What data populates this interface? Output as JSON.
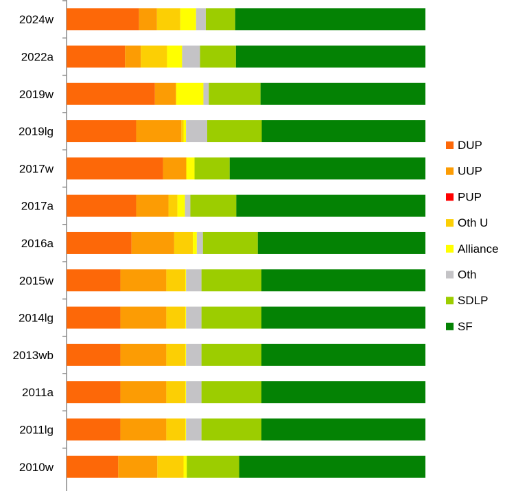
{
  "chart_data": {
    "type": "bar",
    "orientation": "horizontal",
    "stacked": "percent",
    "categories": [
      "2024w",
      "2022a",
      "2019w",
      "2019lg",
      "2017w",
      "2017a",
      "2016a",
      "2015w",
      "2014lg",
      "2013wb",
      "2011a",
      "2011lg",
      "2010w"
    ],
    "series": [
      {
        "name": "DUP",
        "color": "#fd6808",
        "values": [
          20.2,
          16.3,
          24.6,
          19.4,
          26.9,
          19.4,
          18.1,
          15.0,
          15.0,
          15.0,
          15.0,
          15.0,
          14.4
        ]
      },
      {
        "name": "UUP",
        "color": "#fc9c04",
        "values": [
          5.0,
          4.4,
          5.9,
          12.6,
          6.5,
          9.0,
          11.9,
          12.8,
          12.8,
          12.8,
          12.8,
          12.8,
          10.9
        ]
      },
      {
        "name": "PUP",
        "color": "#ff0000",
        "values": [
          0,
          0,
          0,
          0,
          0,
          0,
          0,
          0,
          0,
          0,
          0,
          0,
          0
        ]
      },
      {
        "name": "Oth U",
        "color": "#fccf04",
        "values": [
          6.5,
          7.3,
          0,
          0.6,
          0,
          2.5,
          5.2,
          5.3,
          5.3,
          5.3,
          5.3,
          5.3,
          7.3
        ]
      },
      {
        "name": "Alliance",
        "color": "#ffff00",
        "values": [
          4.4,
          4.2,
          7.6,
          0.7,
          2.3,
          2.1,
          1.1,
          0.2,
          0.2,
          0.2,
          0.2,
          0.2,
          0.9
        ]
      },
      {
        "name": "Oth",
        "color": "#c4c3c6",
        "values": [
          2.7,
          5.0,
          1.5,
          5.9,
          0,
          1.5,
          1.7,
          4.3,
          4.3,
          4.3,
          4.3,
          4.3,
          0
        ]
      },
      {
        "name": "SDLP",
        "color": "#9ccd00",
        "values": [
          8.2,
          10.0,
          14.4,
          15.2,
          9.8,
          12.8,
          15.3,
          16.7,
          16.7,
          16.7,
          16.7,
          16.7,
          14.6
        ]
      },
      {
        "name": "SF",
        "color": "#048204",
        "values": [
          53.0,
          52.8,
          45.9,
          45.6,
          54.6,
          52.7,
          46.7,
          45.7,
          45.7,
          45.7,
          45.7,
          45.7,
          51.9
        ]
      }
    ],
    "xlim": [
      0,
      100
    ],
    "grid": false,
    "legend": "right"
  }
}
